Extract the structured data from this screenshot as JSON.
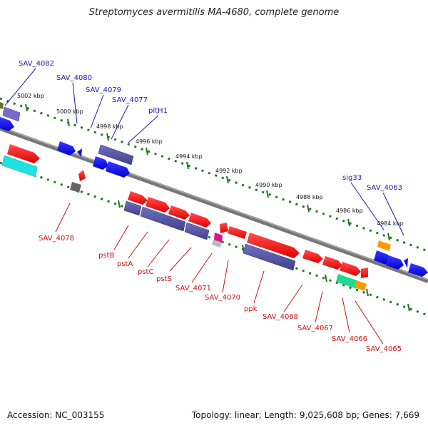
{
  "title": "Streptomyces avermitilis MA-4680, complete genome",
  "footer": {
    "accession": "Accession: NC_003155",
    "summary": "Topology: linear; Length: 9,025,608 bp; Genes: 7,669"
  },
  "colors": {
    "top_label": "#1a1ab8",
    "bottom_label": "#cc1111",
    "dots": "#1e7a1e",
    "backbone": "#888888"
  },
  "kbp_ticks": [
    "5002 kbp",
    "5000 kbp",
    "4998 kbp",
    "4996 kbp",
    "4994 kbp",
    "4992 kbp",
    "4990 kbp",
    "4988 kbp",
    "4986 kbp",
    "4984 kbp"
  ],
  "top_labels": [
    "SAV_4082",
    "SAV_4080",
    "SAV_4079",
    "SAV_4077",
    "pitH1",
    "sig33",
    "SAV_4063"
  ],
  "bottom_labels": [
    "SAV_4078",
    "pstB",
    "pstA",
    "pstC",
    "pstS",
    "SAV_4071",
    "SAV_4070",
    "ppk",
    "SAV_4068",
    "SAV_4067",
    "SAV_4066",
    "SAV_4065"
  ]
}
